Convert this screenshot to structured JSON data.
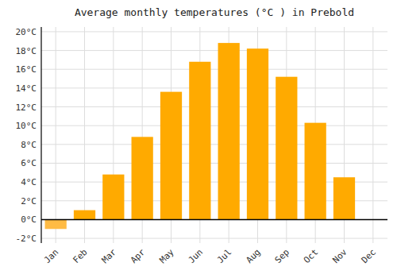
{
  "chart_data": {
    "type": "bar",
    "title": "Average monthly temperatures (°C ) in Prebold",
    "categories": [
      "Jan",
      "Feb",
      "Mar",
      "Apr",
      "May",
      "Jun",
      "Jul",
      "Aug",
      "Sep",
      "Oct",
      "Nov",
      "Dec"
    ],
    "values": [
      -1.0,
      1.0,
      4.8,
      8.8,
      13.6,
      16.8,
      18.8,
      18.2,
      15.2,
      10.3,
      4.5,
      0.0
    ],
    "colors": [
      "#FFBB44",
      "#FFAA00",
      "#FFAA00",
      "#FFAA00",
      "#FFAA00",
      "#FFAA00",
      "#FFAA00",
      "#FFAA00",
      "#FFAA00",
      "#FFAA00",
      "#FFAA00",
      "#FFAA00"
    ],
    "ylim": [
      -2.5,
      20.5
    ],
    "yticks": [
      {
        "value": -2,
        "label": "-2°C"
      },
      {
        "value": 0,
        "label": "0°C"
      },
      {
        "value": 2,
        "label": "2°C"
      },
      {
        "value": 4,
        "label": "4°C"
      },
      {
        "value": 6,
        "label": "6°C"
      },
      {
        "value": 8,
        "label": "8°C"
      },
      {
        "value": 10,
        "label": "10°C"
      },
      {
        "value": 12,
        "label": "12°C"
      },
      {
        "value": 14,
        "label": "14°C"
      },
      {
        "value": 16,
        "label": "16°C"
      },
      {
        "value": 18,
        "label": "18°C"
      },
      {
        "value": 20,
        "label": "20°C"
      }
    ],
    "grid": true
  }
}
